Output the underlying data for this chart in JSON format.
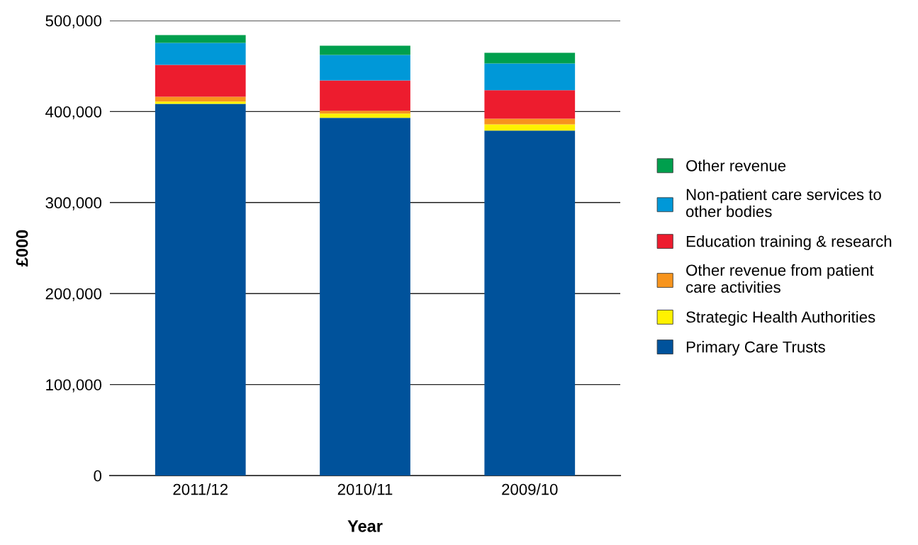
{
  "chart_data": {
    "type": "bar",
    "stacked": true,
    "xlabel": "Year",
    "ylabel": "£000",
    "categories": [
      "2011/12",
      "2010/11",
      "2009/10"
    ],
    "series": [
      {
        "name": "Primary Care Trusts",
        "color": "#00529b",
        "values": [
          408500,
          393200,
          379000
        ]
      },
      {
        "name": "Strategic Health Authorities",
        "color": "#fff200",
        "values": [
          2600,
          4500,
          7000
        ]
      },
      {
        "name": "Other revenue from patient\ncare activities",
        "color": "#f7941d",
        "values": [
          5200,
          3100,
          6200
        ]
      },
      {
        "name": "Education training & research",
        "color": "#ed1c2e",
        "values": [
          35000,
          33400,
          31200
        ]
      },
      {
        "name": "Non-patient care services to\nother bodies",
        "color": "#0098d8",
        "values": [
          24200,
          28000,
          29500
        ]
      },
      {
        "name": "Other revenue",
        "color": "#009f4d",
        "values": [
          8500,
          10100,
          11700
        ]
      }
    ],
    "ylim": [
      0,
      500000
    ],
    "yticks": [
      {
        "value": 0,
        "label": "0"
      },
      {
        "value": 100000,
        "label": "100,000"
      },
      {
        "value": 200000,
        "label": "200,000"
      },
      {
        "value": 300000,
        "label": "300,000"
      },
      {
        "value": 400000,
        "label": "400,000"
      },
      {
        "value": 500000,
        "label": "500,000"
      }
    ],
    "grid": "y",
    "legend": "right"
  }
}
